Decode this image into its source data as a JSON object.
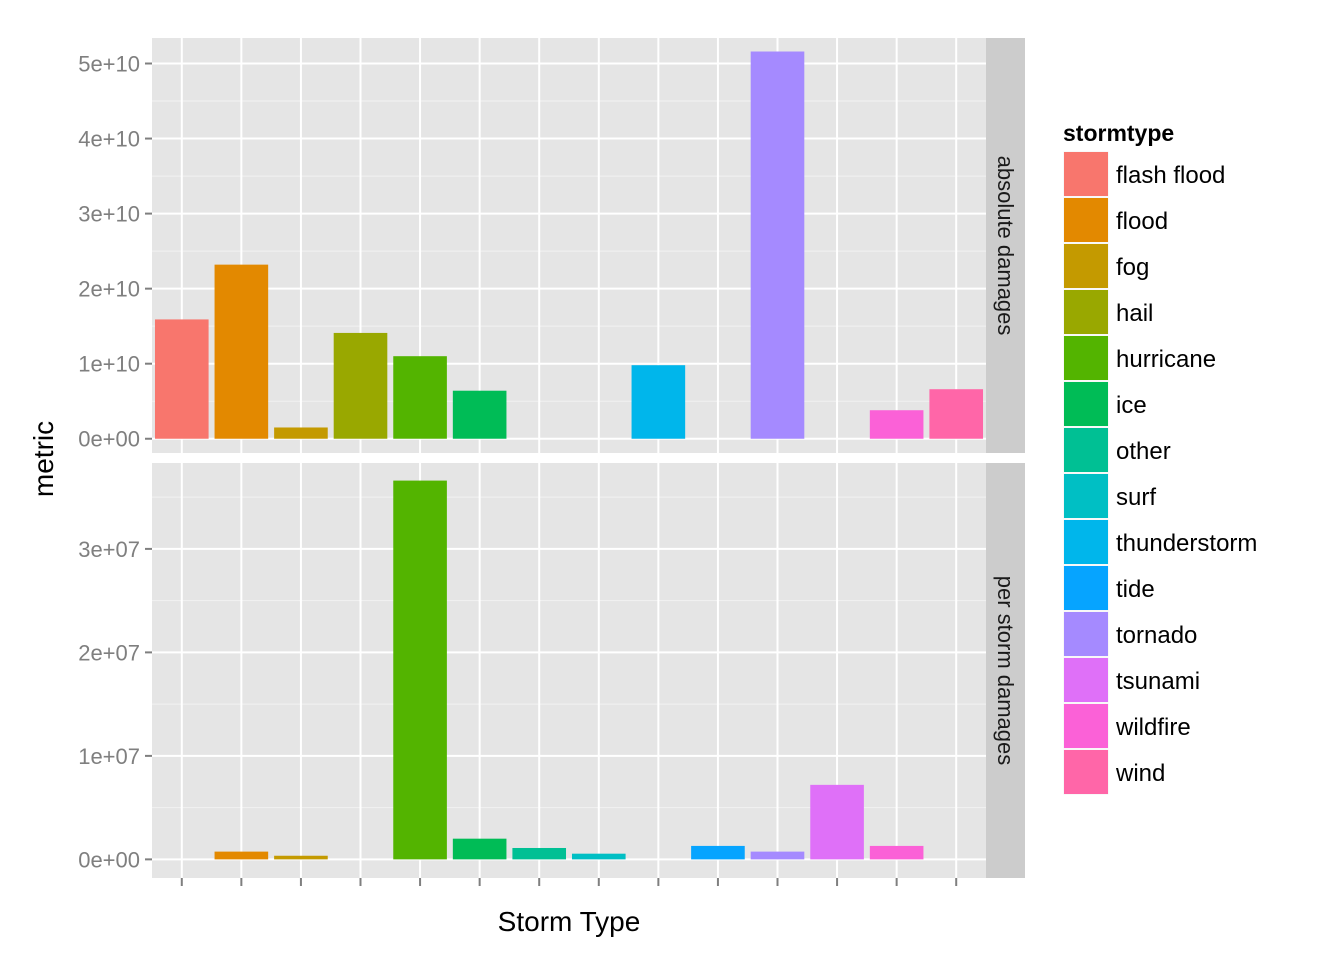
{
  "chart_data": {
    "type": "bar",
    "xlabel": "Storm Type",
    "ylabel": "metric",
    "grid": true,
    "legend": {
      "title": "stormtype",
      "placement": "right",
      "entries": [
        {
          "name": "flash flood",
          "color": "#F8766D"
        },
        {
          "name": "flood",
          "color": "#E38900"
        },
        {
          "name": "fog",
          "color": "#C49A00"
        },
        {
          "name": "hail",
          "color": "#99A800"
        },
        {
          "name": "hurricane",
          "color": "#53B400"
        },
        {
          "name": "ice",
          "color": "#00BC56"
        },
        {
          "name": "other",
          "color": "#00C094"
        },
        {
          "name": "surf",
          "color": "#00BFC4"
        },
        {
          "name": "thunderstorm",
          "color": "#00B6EB"
        },
        {
          "name": "tide",
          "color": "#06A4FF"
        },
        {
          "name": "tornado",
          "color": "#A58AFF"
        },
        {
          "name": "tsunami",
          "color": "#DF70F8"
        },
        {
          "name": "wildfire",
          "color": "#FB61D7"
        },
        {
          "name": "wind",
          "color": "#FF66A8"
        }
      ]
    },
    "categories": [
      "flash flood",
      "flood",
      "fog",
      "hail",
      "hurricane",
      "ice",
      "other",
      "surf",
      "thunderstorm",
      "tide",
      "tornado",
      "tsunami",
      "wildfire",
      "wind"
    ],
    "facets": [
      {
        "label": "absolute damages",
        "ylim": [
          -1900000000,
          53400000000
        ],
        "ticks": [
          0,
          10000000000,
          20000000000,
          30000000000,
          40000000000,
          50000000000
        ],
        "tick_labels": [
          "0e+00",
          "1e+10",
          "2e+10",
          "3e+10",
          "4e+10",
          "5e+10"
        ],
        "values": [
          15900000000,
          23200000000,
          1500000000,
          14100000000,
          11000000000,
          6400000000,
          0,
          0,
          9800000000,
          0,
          51600000000,
          0,
          3800000000,
          6600000000
        ]
      },
      {
        "label": "per storm damages",
        "ylim": [
          -1800000,
          38300000
        ],
        "ticks": [
          0,
          10000000,
          20000000,
          30000000
        ],
        "tick_labels": [
          "0e+00",
          "1e+07",
          "2e+07",
          "3e+07"
        ],
        "values": [
          0,
          750000,
          350000,
          0,
          36600000,
          2000000,
          1100000,
          550000,
          0,
          1300000,
          750000,
          7200000,
          1300000,
          0
        ]
      }
    ]
  }
}
